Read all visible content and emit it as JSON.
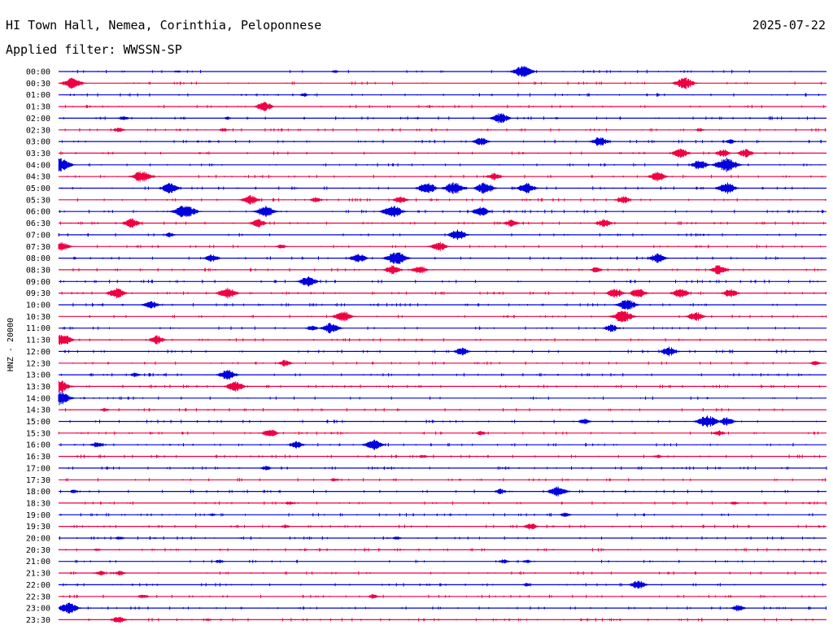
{
  "header": {
    "station": "HI Town Hall, Nemea, Corinthia, Peloponnese",
    "date": "2025-07-22",
    "filter": "Applied filter: WWSSN-SP"
  },
  "chart_data": {
    "type": "line",
    "title": "HI Town Hall, Nemea, Corinthia, Peloponnese",
    "ylabel": "HNZ - 20000",
    "grid": false,
    "colors": {
      "odd_trace": "#0000dd",
      "even_trace": "#ee0044",
      "text": "#000000",
      "background": "#ffffff"
    },
    "rows": [
      {
        "label": "00:00",
        "bursts": [
          [
            0.605,
            1.3
          ],
          [
            0.155,
            0.3
          ],
          [
            0.36,
            0.3
          ]
        ]
      },
      {
        "label": "00:30",
        "bursts": [
          [
            0.018,
            1.2
          ],
          [
            0.815,
            1.2
          ]
        ]
      },
      {
        "label": "01:00",
        "bursts": [
          [
            0.32,
            0.4
          ]
        ]
      },
      {
        "label": "01:30",
        "bursts": [
          [
            0.268,
            1.0
          ]
        ]
      },
      {
        "label": "02:00",
        "bursts": [
          [
            0.085,
            0.5
          ],
          [
            0.575,
            1.1
          ],
          [
            0.22,
            0.3
          ]
        ]
      },
      {
        "label": "02:30",
        "bursts": [
          [
            0.078,
            0.5
          ],
          [
            0.215,
            0.4
          ],
          [
            0.835,
            0.4
          ]
        ]
      },
      {
        "label": "03:00",
        "bursts": [
          [
            0.55,
            0.9
          ],
          [
            0.705,
            1.0
          ],
          [
            0.875,
            0.5
          ]
        ]
      },
      {
        "label": "03:30",
        "bursts": [
          [
            0.81,
            1.0
          ],
          [
            0.865,
            0.8
          ],
          [
            0.895,
            0.9
          ]
        ]
      },
      {
        "label": "04:00",
        "bursts": [
          [
            0.002,
            1.4
          ],
          [
            0.835,
            1.0
          ],
          [
            0.87,
            1.5
          ]
        ]
      },
      {
        "label": "04:30",
        "bursts": [
          [
            0.108,
            1.2
          ],
          [
            0.78,
            1.0
          ],
          [
            0.568,
            0.8
          ]
        ]
      },
      {
        "label": "05:00",
        "bursts": [
          [
            0.145,
            1.1
          ],
          [
            0.48,
            1.2
          ],
          [
            0.515,
            1.3
          ],
          [
            0.555,
            1.2
          ],
          [
            0.61,
            1.1
          ],
          [
            0.87,
            1.2
          ]
        ]
      },
      {
        "label": "05:30",
        "bursts": [
          [
            0.25,
            1.0
          ],
          [
            0.335,
            0.6
          ],
          [
            0.445,
            0.8
          ],
          [
            0.735,
            0.8
          ]
        ]
      },
      {
        "label": "06:00",
        "bursts": [
          [
            0.165,
            1.5
          ],
          [
            0.27,
            1.2
          ],
          [
            0.435,
            1.3
          ],
          [
            0.55,
            1.0
          ]
        ]
      },
      {
        "label": "06:30",
        "bursts": [
          [
            0.095,
            1.0
          ],
          [
            0.26,
            0.9
          ],
          [
            0.59,
            0.8
          ],
          [
            0.71,
            0.9
          ]
        ]
      },
      {
        "label": "07:00",
        "bursts": [
          [
            0.52,
            1.1
          ],
          [
            0.145,
            0.5
          ]
        ]
      },
      {
        "label": "07:30",
        "bursts": [
          [
            0.005,
            0.9
          ],
          [
            0.495,
            1.0
          ],
          [
            0.29,
            0.5
          ]
        ]
      },
      {
        "label": "08:00",
        "bursts": [
          [
            0.2,
            0.8
          ],
          [
            0.39,
            1.0
          ],
          [
            0.44,
            1.4
          ],
          [
            0.78,
            1.0
          ]
        ]
      },
      {
        "label": "08:30",
        "bursts": [
          [
            0.435,
            1.0
          ],
          [
            0.47,
            0.9
          ],
          [
            0.7,
            0.6
          ],
          [
            0.86,
            1.0
          ]
        ]
      },
      {
        "label": "09:00",
        "bursts": [
          [
            0.325,
            1.1
          ]
        ]
      },
      {
        "label": "09:30",
        "bursts": [
          [
            0.075,
            1.1
          ],
          [
            0.22,
            1.2
          ],
          [
            0.725,
            1.0
          ],
          [
            0.755,
            1.0
          ],
          [
            0.81,
            1.0
          ],
          [
            0.875,
            0.9
          ]
        ]
      },
      {
        "label": "10:00",
        "bursts": [
          [
            0.12,
            0.9
          ],
          [
            0.74,
            1.2
          ]
        ]
      },
      {
        "label": "10:30",
        "bursts": [
          [
            0.37,
            1.1
          ],
          [
            0.735,
            1.3
          ],
          [
            0.83,
            1.0
          ]
        ]
      },
      {
        "label": "11:00",
        "bursts": [
          [
            0.33,
            0.6
          ],
          [
            0.355,
            1.1
          ],
          [
            0.72,
            0.8
          ]
        ]
      },
      {
        "label": "11:30",
        "bursts": [
          [
            0.005,
            1.3
          ],
          [
            0.128,
            0.9
          ]
        ]
      },
      {
        "label": "12:00",
        "bursts": [
          [
            0.525,
            0.8
          ],
          [
            0.795,
            1.0
          ]
        ]
      },
      {
        "label": "12:30",
        "bursts": [
          [
            0.295,
            0.7
          ],
          [
            0.985,
            0.5
          ]
        ]
      },
      {
        "label": "13:00",
        "bursts": [
          [
            0.1,
            0.5
          ],
          [
            0.22,
            1.1
          ]
        ]
      },
      {
        "label": "13:30",
        "bursts": [
          [
            0.0,
            1.4
          ],
          [
            0.23,
            1.1
          ]
        ]
      },
      {
        "label": "14:00",
        "bursts": [
          [
            0.0,
            1.5
          ]
        ]
      },
      {
        "label": "14:30",
        "bursts": [
          [
            0.06,
            0.4
          ]
        ]
      },
      {
        "label": "15:00",
        "bursts": [
          [
            0.685,
            0.6
          ],
          [
            0.845,
            1.3
          ],
          [
            0.87,
            0.9
          ]
        ]
      },
      {
        "label": "15:30",
        "bursts": [
          [
            0.275,
            0.9
          ],
          [
            0.55,
            0.5
          ],
          [
            0.86,
            0.6
          ]
        ]
      },
      {
        "label": "16:00",
        "bursts": [
          [
            0.05,
            0.6
          ],
          [
            0.31,
            0.8
          ],
          [
            0.41,
            1.1
          ]
        ]
      },
      {
        "label": "16:30",
        "bursts": [
          [
            0.475,
            0.4
          ],
          [
            0.78,
            0.4
          ]
        ]
      },
      {
        "label": "17:00",
        "bursts": [
          [
            0.27,
            0.5
          ]
        ]
      },
      {
        "label": "17:30",
        "bursts": [
          [
            0.36,
            0.4
          ]
        ]
      },
      {
        "label": "18:00",
        "bursts": [
          [
            0.575,
            0.6
          ],
          [
            0.65,
            1.1
          ],
          [
            0.02,
            0.4
          ]
        ]
      },
      {
        "label": "18:30",
        "bursts": [
          [
            0.3,
            0.4
          ],
          [
            0.88,
            0.4
          ]
        ]
      },
      {
        "label": "19:00",
        "bursts": [
          [
            0.66,
            0.5
          ],
          [
            0.2,
            0.3
          ]
        ]
      },
      {
        "label": "19:30",
        "bursts": [
          [
            0.615,
            0.7
          ],
          [
            0.295,
            0.4
          ]
        ]
      },
      {
        "label": "20:00",
        "bursts": [
          [
            0.08,
            0.4
          ],
          [
            0.44,
            0.4
          ]
        ]
      },
      {
        "label": "20:30",
        "bursts": [
          [
            0.05,
            0.3
          ]
        ]
      },
      {
        "label": "21:00",
        "bursts": [
          [
            0.21,
            0.4
          ],
          [
            0.58,
            0.5
          ],
          [
            0.61,
            0.4
          ]
        ]
      },
      {
        "label": "21:30",
        "bursts": [
          [
            0.055,
            0.5
          ],
          [
            0.08,
            0.5
          ]
        ]
      },
      {
        "label": "22:00",
        "bursts": [
          [
            0.755,
            0.9
          ],
          [
            0.61,
            0.4
          ]
        ]
      },
      {
        "label": "22:30",
        "bursts": [
          [
            0.11,
            0.5
          ],
          [
            0.41,
            0.5
          ]
        ]
      },
      {
        "label": "23:00",
        "bursts": [
          [
            0.013,
            1.2
          ],
          [
            0.885,
            0.7
          ]
        ]
      },
      {
        "label": "23:30",
        "bursts": [
          [
            0.078,
            0.8
          ],
          [
            0.195,
            0.3
          ]
        ]
      }
    ]
  }
}
